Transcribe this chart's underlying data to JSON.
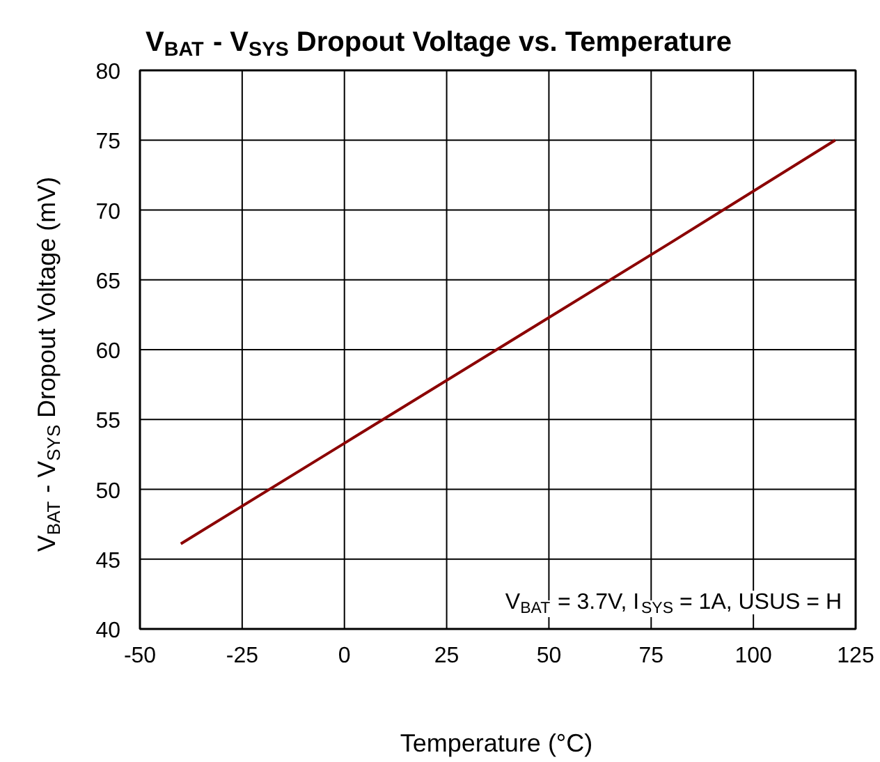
{
  "chart_data": {
    "type": "line",
    "title": "V$_{BAT}$ - V$_{SYS}$ Dropout Voltage vs. Temperature",
    "xlabel": "Temperature (°C)",
    "ylabel": "V$_{BAT}$ - V$_{SYS}$ Dropout Voltage (mV)",
    "x": [
      -40,
      0,
      40,
      80,
      120
    ],
    "series": [
      {
        "color": "#8b0000",
        "values": [
          46.1,
          53.3,
          60.5,
          67.7,
          75.0
        ]
      }
    ],
    "xlim": [
      -50,
      125
    ],
    "xticks": [
      -50,
      -25,
      0,
      25,
      50,
      75,
      100,
      125
    ],
    "ylim": [
      40,
      80
    ],
    "yticks": [
      40,
      45,
      50,
      55,
      60,
      65,
      70,
      75,
      80
    ],
    "grid": true,
    "marker": "none",
    "line_style": "solid",
    "annotations": [
      "V$_{BAT}$ = 3.7V, I$_{SYS}$ = 1A, USUS = H"
    ]
  }
}
